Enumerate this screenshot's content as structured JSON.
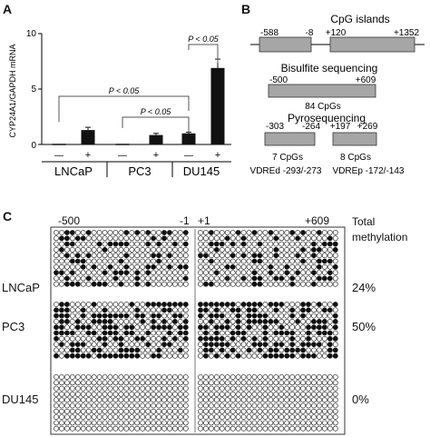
{
  "panel_a": {
    "label": "A",
    "chart_data": {
      "type": "bar",
      "ylabel": "CYP24A1/GAPDH mRNA",
      "ylim": [
        0,
        10
      ],
      "yticks": [
        "0",
        "5",
        "10"
      ],
      "groups": [
        "LNCaP",
        "PC3",
        "DU145"
      ],
      "treatment_labels": [
        "—",
        "+"
      ],
      "series": [
        {
          "group": "LNCaP",
          "treatment": "—",
          "value": 0.0,
          "error": 0.0
        },
        {
          "group": "LNCaP",
          "treatment": "+",
          "value": 1.3,
          "error": 0.25
        },
        {
          "group": "PC3",
          "treatment": "—",
          "value": 0.0,
          "error": 0.0
        },
        {
          "group": "PC3",
          "treatment": "+",
          "value": 0.85,
          "error": 0.15
        },
        {
          "group": "DU145",
          "treatment": "—",
          "value": 1.0,
          "error": 0.1
        },
        {
          "group": "DU145",
          "treatment": "+",
          "value": 6.9,
          "error": 0.8
        }
      ],
      "annotations": [
        {
          "text": "P < 0.05",
          "from_bar": 4,
          "to_bar": 5
        },
        {
          "text": "P < 0.05",
          "from_bar": 0,
          "to_bar": 4
        },
        {
          "text": "P < 0.05",
          "from_bar": 2,
          "to_bar": 4
        }
      ]
    }
  },
  "panel_b": {
    "label": "B",
    "cpg_title": "CpG islands",
    "cpg_coords": [
      "-588",
      "-8",
      "+120",
      "+1352"
    ],
    "bisulfite_title": "Bisulfite sequencing",
    "bisulfite_coords": [
      "-500",
      "+609"
    ],
    "bisulfite_count": "84 CpGs",
    "pyro_title": "Pyrosequencing",
    "pyro_left_coords": [
      "-303",
      "-264"
    ],
    "pyro_right_coords": [
      "+197",
      "+269"
    ],
    "pyro_left_count": "7 CpGs",
    "pyro_right_count": "8 CpGs",
    "vdre_left": "VDREd -293/-273",
    "vdre_right": "VDREp -172/-143"
  },
  "panel_c": {
    "label": "C",
    "coords": [
      "-500",
      "-1",
      "+1",
      "+609"
    ],
    "header": "Total methylation",
    "rows": [
      {
        "name": "LNCaP",
        "value": "24%",
        "fraction": 0.24
      },
      {
        "name": "PC3",
        "value": "50%",
        "fraction": 0.5
      },
      {
        "name": "DU145",
        "value": "0%",
        "fraction": 0.0
      }
    ]
  }
}
